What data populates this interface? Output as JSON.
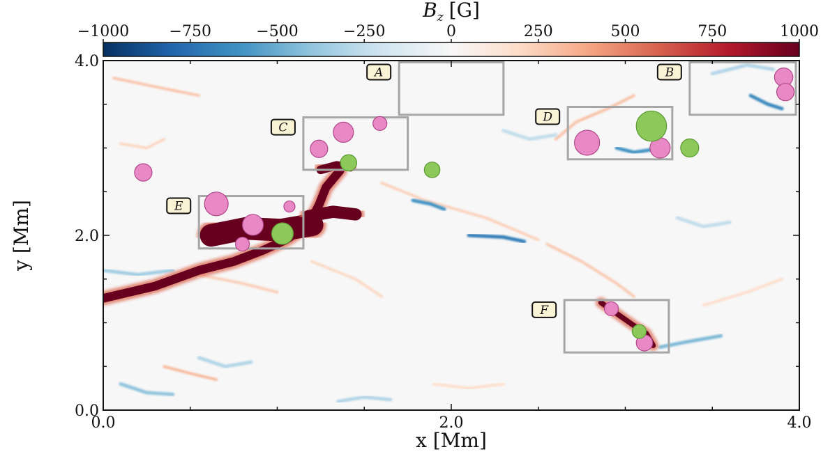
{
  "chart_data": {
    "type": "heatmap",
    "colorbar": {
      "label": "B_z [G]",
      "label_main": "B",
      "label_sub": "z",
      "label_unit": "[G]",
      "range": [
        -1000,
        1000
      ],
      "ticks": [
        -1000,
        -750,
        -500,
        -250,
        0,
        250,
        500,
        750,
        1000
      ],
      "tick_labels": [
        "−1000",
        "−750",
        "−500",
        "−250",
        "0",
        "250",
        "500",
        "750",
        "1000"
      ],
      "colormap": [
        "#053061",
        "#2166ac",
        "#4393c3",
        "#92c5de",
        "#d1e5f0",
        "#f7f7f7",
        "#fddbc7",
        "#f4a582",
        "#d6604d",
        "#b2182b",
        "#67001f"
      ]
    },
    "xlabel": "x  [Mm]",
    "ylabel": "y [Mm]",
    "xlim": [
      0,
      4
    ],
    "ylim": [
      0,
      4
    ],
    "x_ticks": [
      0,
      2,
      4
    ],
    "x_tick_labels": [
      "0.0",
      "2.0",
      "4.0"
    ],
    "y_ticks": [
      0,
      2,
      4
    ],
    "y_tick_labels": [
      "0.0",
      "2.0",
      "4.0"
    ],
    "positive_structures": [
      {
        "points": [
          [
            0.0,
            1.28
          ],
          [
            0.3,
            1.42
          ],
          [
            0.55,
            1.6
          ],
          [
            0.75,
            1.7
          ],
          [
            0.92,
            1.83
          ],
          [
            1.05,
            1.95
          ],
          [
            1.18,
            2.12
          ],
          [
            1.24,
            2.35
          ],
          [
            1.28,
            2.55
          ],
          [
            1.36,
            2.74
          ]
        ],
        "value": 1000,
        "width": 0.05
      },
      {
        "points": [
          [
            0.62,
            2.0
          ],
          [
            0.82,
            2.08
          ],
          [
            1.02,
            2.06
          ],
          [
            1.2,
            2.12
          ]
        ],
        "value": 1000,
        "width": 0.13
      },
      {
        "points": [
          [
            1.18,
            2.22
          ],
          [
            1.32,
            2.27
          ],
          [
            1.45,
            2.24
          ]
        ],
        "value": 1000,
        "width": 0.07
      },
      {
        "points": [
          [
            1.25,
            2.75
          ],
          [
            1.34,
            2.8
          ],
          [
            1.42,
            2.78
          ]
        ],
        "value": 1000,
        "width": 0.05
      },
      {
        "points": [
          [
            2.86,
            1.23
          ],
          [
            2.94,
            1.12
          ],
          [
            3.04,
            0.98
          ],
          [
            3.12,
            0.88
          ],
          [
            3.16,
            0.74
          ]
        ],
        "value": 1000,
        "width": 0.03
      }
    ],
    "weak_filaments": [
      {
        "points": [
          [
            0.06,
            3.8
          ],
          [
            0.3,
            3.7
          ],
          [
            0.55,
            3.6
          ]
        ],
        "value": 300
      },
      {
        "points": [
          [
            1.6,
            2.6
          ],
          [
            1.85,
            2.4
          ],
          [
            2.2,
            2.2
          ],
          [
            2.5,
            1.95
          ]
        ],
        "value": 250
      },
      {
        "points": [
          [
            2.55,
            1.9
          ],
          [
            2.75,
            1.7
          ],
          [
            2.95,
            1.45
          ],
          [
            3.05,
            1.3
          ]
        ],
        "value": 280
      },
      {
        "points": [
          [
            2.6,
            3.1
          ],
          [
            2.72,
            3.3
          ],
          [
            2.9,
            3.45
          ],
          [
            3.05,
            3.6
          ]
        ],
        "value": 320
      },
      {
        "points": [
          [
            1.2,
            1.7
          ],
          [
            1.45,
            1.5
          ],
          [
            1.6,
            1.3
          ]
        ],
        "value": 220
      },
      {
        "points": [
          [
            0.35,
            0.5
          ],
          [
            0.5,
            0.42
          ],
          [
            0.65,
            0.35
          ]
        ],
        "value": 350
      },
      {
        "points": [
          [
            1.9,
            0.3
          ],
          [
            2.1,
            0.25
          ],
          [
            2.3,
            0.3
          ]
        ],
        "value": 200
      },
      {
        "points": [
          [
            0.1,
            3.05
          ],
          [
            0.25,
            3.0
          ],
          [
            0.35,
            3.1
          ]
        ],
        "value": 230
      },
      {
        "points": [
          [
            0.55,
            1.55
          ],
          [
            0.8,
            1.45
          ],
          [
            1.0,
            1.35
          ]
        ],
        "value": 260
      },
      {
        "points": [
          [
            3.45,
            1.2
          ],
          [
            3.7,
            1.35
          ],
          [
            3.9,
            1.5
          ]
        ],
        "value": 200
      }
    ],
    "negative_filaments": [
      {
        "points": [
          [
            1.78,
            2.4
          ],
          [
            1.88,
            2.36
          ],
          [
            1.96,
            2.3
          ]
        ],
        "value": -600
      },
      {
        "points": [
          [
            2.1,
            2.0
          ],
          [
            2.3,
            1.98
          ],
          [
            2.42,
            1.93
          ]
        ],
        "value": -700
      },
      {
        "points": [
          [
            3.2,
            0.72
          ],
          [
            3.35,
            0.78
          ],
          [
            3.55,
            0.85
          ]
        ],
        "value": -450
      },
      {
        "points": [
          [
            3.72,
            3.6
          ],
          [
            3.82,
            3.5
          ],
          [
            3.9,
            3.45
          ]
        ],
        "value": -650
      },
      {
        "points": [
          [
            2.95,
            3.0
          ],
          [
            3.05,
            2.95
          ],
          [
            3.15,
            2.98
          ]
        ],
        "value": -600
      },
      {
        "points": [
          [
            0.0,
            1.6
          ],
          [
            0.2,
            1.55
          ],
          [
            0.4,
            1.6
          ]
        ],
        "value": -350
      },
      {
        "points": [
          [
            0.1,
            0.3
          ],
          [
            0.25,
            0.2
          ],
          [
            0.4,
            0.18
          ]
        ],
        "value": -400
      },
      {
        "points": [
          [
            1.35,
            0.1
          ],
          [
            1.5,
            0.15
          ],
          [
            1.65,
            0.12
          ]
        ],
        "value": -300
      },
      {
        "points": [
          [
            3.5,
            3.85
          ],
          [
            3.7,
            3.95
          ],
          [
            3.85,
            3.9
          ]
        ],
        "value": -300
      },
      {
        "points": [
          [
            0.55,
            0.6
          ],
          [
            0.7,
            0.5
          ],
          [
            0.85,
            0.55
          ]
        ],
        "value": -300
      },
      {
        "points": [
          [
            3.3,
            2.2
          ],
          [
            3.45,
            2.1
          ],
          [
            3.6,
            2.15
          ]
        ],
        "value": -250
      },
      {
        "points": [
          [
            2.3,
            3.2
          ],
          [
            2.45,
            3.1
          ],
          [
            2.6,
            3.15
          ]
        ],
        "value": -250
      }
    ],
    "boxes": [
      {
        "label": "A",
        "x0": 1.7,
        "x1": 2.3,
        "y0": 3.38,
        "y1": 3.98
      },
      {
        "label": "B",
        "x0": 3.37,
        "x1": 3.98,
        "y0": 3.38,
        "y1": 3.98
      },
      {
        "label": "C",
        "x0": 1.15,
        "x1": 1.75,
        "y0": 2.75,
        "y1": 3.35
      },
      {
        "label": "D",
        "x0": 2.67,
        "x1": 3.27,
        "y0": 2.87,
        "y1": 3.47
      },
      {
        "label": "E",
        "x0": 0.55,
        "x1": 1.15,
        "y0": 1.85,
        "y1": 2.45
      },
      {
        "label": "F",
        "x0": 2.65,
        "x1": 3.25,
        "y0": 0.66,
        "y1": 1.26
      }
    ],
    "pink_markers": [
      {
        "x": 0.23,
        "y": 2.72,
        "r": 0.05
      },
      {
        "x": 1.24,
        "y": 2.99,
        "r": 0.05
      },
      {
        "x": 1.38,
        "y": 3.18,
        "r": 0.058
      },
      {
        "x": 1.59,
        "y": 3.28,
        "r": 0.04
      },
      {
        "x": 0.65,
        "y": 2.36,
        "r": 0.068
      },
      {
        "x": 0.86,
        "y": 2.12,
        "r": 0.06
      },
      {
        "x": 1.07,
        "y": 2.33,
        "r": 0.032
      },
      {
        "x": 0.8,
        "y": 1.9,
        "r": 0.04
      },
      {
        "x": 2.78,
        "y": 3.06,
        "r": 0.072
      },
      {
        "x": 3.2,
        "y": 3.0,
        "r": 0.058
      },
      {
        "x": 3.91,
        "y": 3.81,
        "r": 0.053
      },
      {
        "x": 3.92,
        "y": 3.64,
        "r": 0.05
      },
      {
        "x": 2.92,
        "y": 1.16,
        "r": 0.04
      },
      {
        "x": 3.11,
        "y": 0.77,
        "r": 0.047
      }
    ],
    "green_markers": [
      {
        "x": 1.41,
        "y": 2.83,
        "r": 0.047
      },
      {
        "x": 1.89,
        "y": 2.75,
        "r": 0.045
      },
      {
        "x": 1.03,
        "y": 2.02,
        "r": 0.062
      },
      {
        "x": 3.15,
        "y": 3.25,
        "r": 0.087
      },
      {
        "x": 3.37,
        "y": 3.0,
        "r": 0.052
      },
      {
        "x": 3.08,
        "y": 0.9,
        "r": 0.04
      }
    ]
  }
}
